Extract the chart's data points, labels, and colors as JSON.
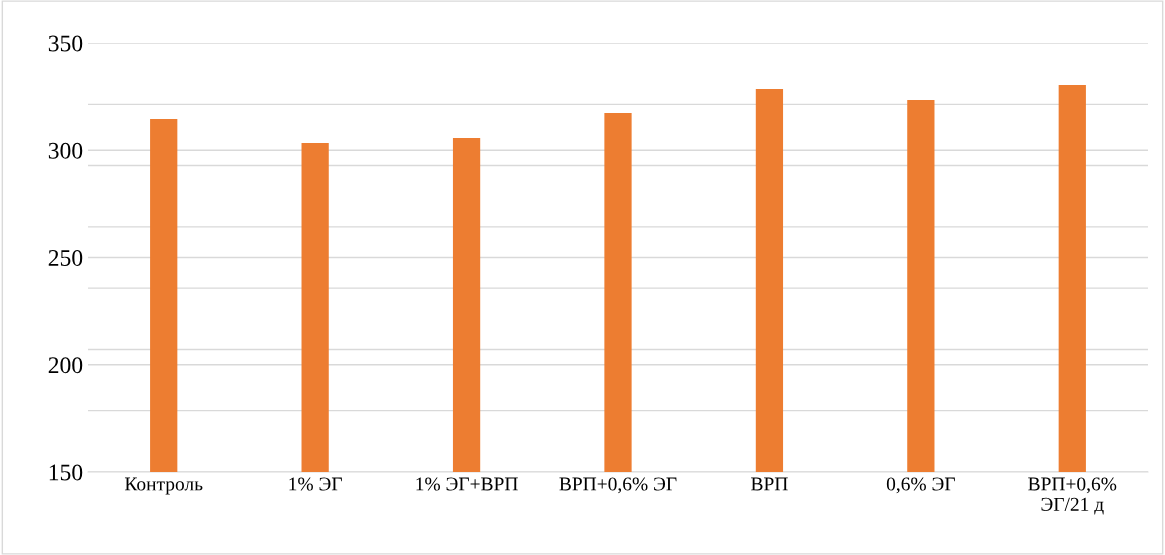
{
  "chart_data": {
    "type": "bar",
    "categories": [
      "Контроль",
      "1% ЭГ",
      "1% ЭГ+ВРП",
      "ВРП+0,6% ЭГ",
      "ВРП",
      "0,6% ЭГ",
      "ВРП+0,6%\nЭГ/21 д"
    ],
    "values": [
      314.6,
      303.4,
      305.7,
      317.4,
      328.6,
      323.4,
      330.4
    ],
    "color": "#ed7d31",
    "ylim": [
      150,
      350
    ],
    "yticks": [
      150,
      {
        "value": 178.6,
        "label": null
      },
      200,
      {
        "value": 207.1,
        "label": null
      },
      {
        "value": 235.7,
        "label": null
      },
      250,
      {
        "value": 264.3,
        "label": null
      },
      {
        "value": 292.9,
        "label": null
      },
      300,
      {
        "value": 321.4,
        "label": null
      },
      350
    ],
    "grid": "y",
    "legend": false
  }
}
